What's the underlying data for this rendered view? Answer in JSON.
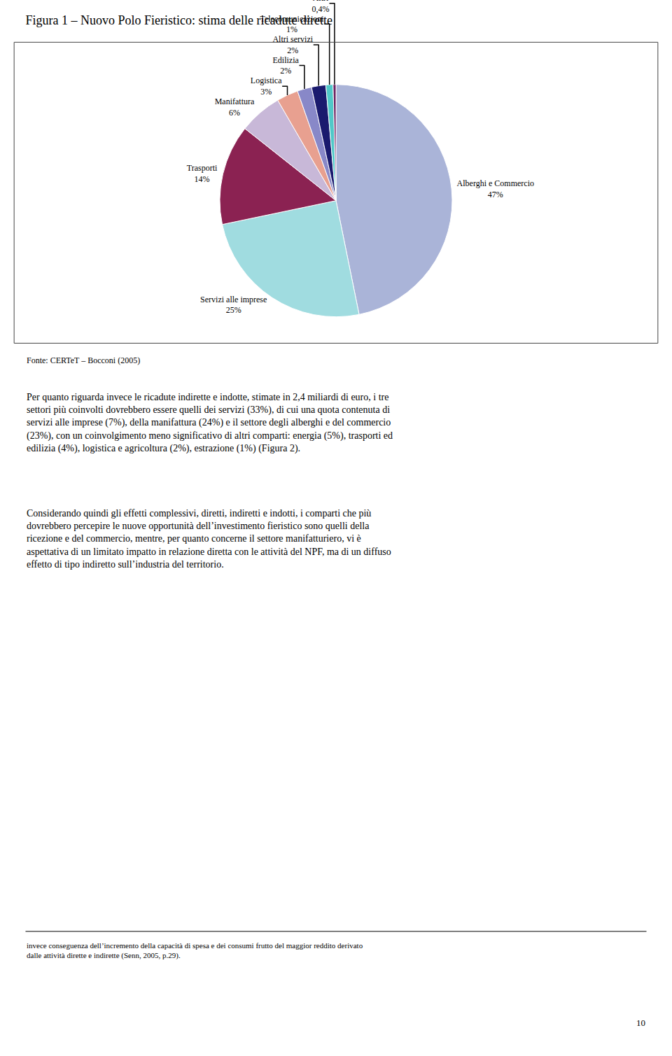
{
  "chart_data": {
    "type": "pie",
    "title": "Figura 1 – Nuovo Polo Fieristico: stima delle ricadute dirette",
    "categories": [
      "Alberghi e Commercio",
      "Servizi alle imprese",
      "Trasporti",
      "Manifattura",
      "Logistica",
      "Edilizia",
      "Altri servizi",
      "Telecomunicazioni",
      "Altri"
    ],
    "values": [
      47,
      25,
      14,
      6,
      3,
      2,
      2,
      1,
      0.4
    ],
    "value_labels": [
      "47%",
      "25%",
      "14%",
      "6%",
      "3%",
      "2%",
      "2%",
      "1%",
      "0,4%"
    ],
    "colors": [
      "#aab4d8",
      "#a0dce0",
      "#8b2252",
      "#c8b8d8",
      "#e8a090",
      "#8888c8",
      "#1a1a6e",
      "#50c8c8",
      "#6b2060"
    ],
    "data_labels": true,
    "annotations": [
      "Fonte: CERTeT – Bocconi (2005)",
      "Per quanto riguarda invece le ricadute indirette e indotte, stimate in 2,4 miliardi di euro, i tre\nsettori più coinvolti dovrebbero essere quelli dei servizi (33%), di cui una quota contenuta di\nservizi alle imprese (7%), della manifattura (24%) e il settore degli alberghi e del commercio\n(23%), con un coinvolgimento meno significativo di altri comparti: energia (5%), trasporti ed\nedilizia (4%), logistica e agricoltura (2%), estrazione (1%) (Figura 2).",
      "Considerando quindi gli effetti complessivi, diretti, indiretti e indotti, i comparti che più\ndovrebbero percepire le nuove opportunità dell’investimento fieristico sono quelli della\nricezione e del commercio, mentre, per quanto concerne il settore manifatturiero, vi è\naspettativa di un limitato impatto in relazione diretta con le attività del NPF, ma di un diffuso\neffetto di tipo indiretto sull’industria del territorio.",
      "invece conseguenza dell’incremento della capacità di spesa e dei consumi frutto del maggior reddito derivato\ndalle attività dirette e indirette (Senn, 2005, p.29).",
      "10"
    ]
  }
}
